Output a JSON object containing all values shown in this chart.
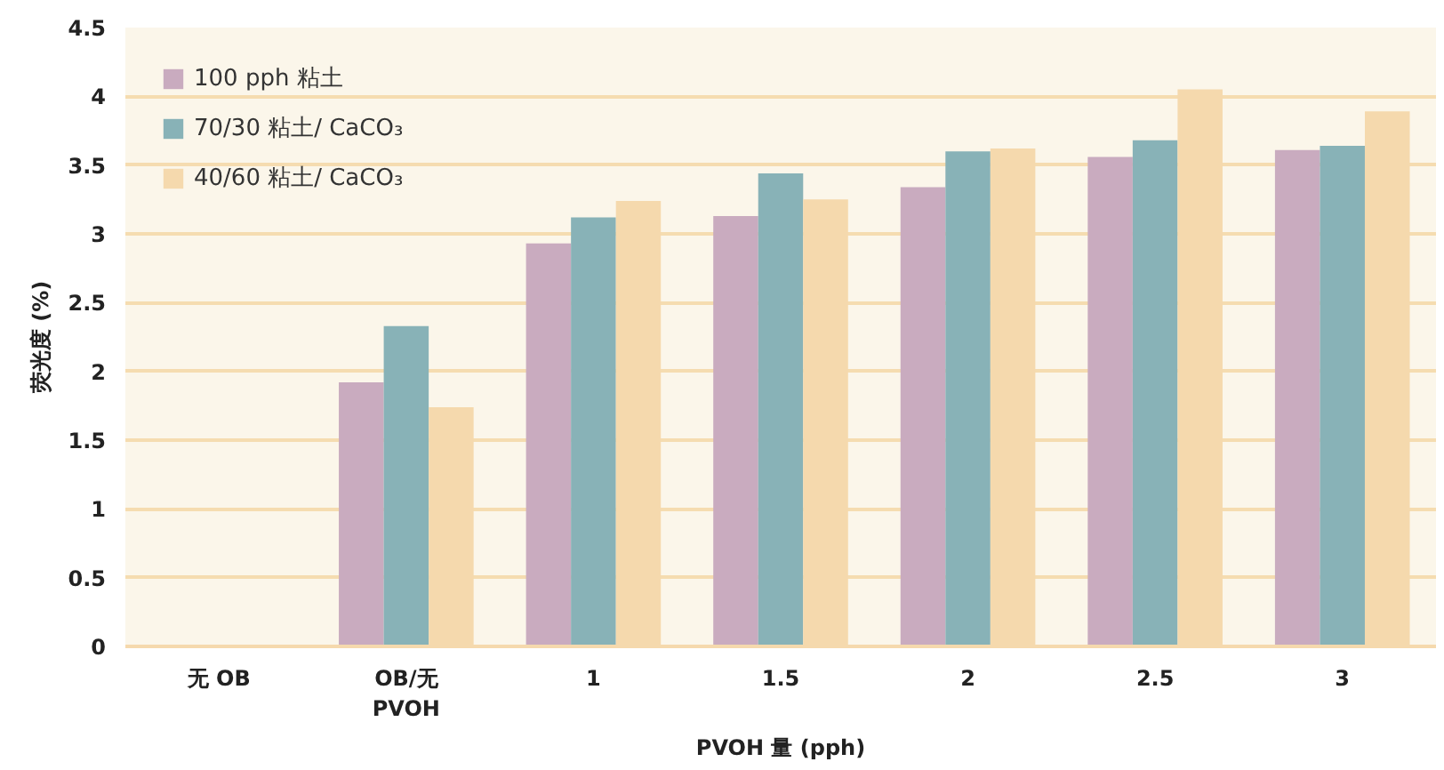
{
  "chart_data": {
    "type": "bar",
    "xlabel": "PVOH 量 (pph)",
    "ylabel": "荧光度 (%)",
    "categories": [
      "无 OB",
      "OB/无\nPVOH",
      "1",
      "1.5",
      "2",
      "2.5",
      "3"
    ],
    "series": [
      {
        "name": "100 pph 粘土",
        "color": "#c9abbf",
        "values": [
          null,
          1.92,
          2.93,
          3.13,
          3.34,
          3.56,
          3.61
        ]
      },
      {
        "name": "70/30 粘土/ CaCO₃",
        "color": "#88b2b7",
        "values": [
          null,
          2.33,
          3.12,
          3.44,
          3.6,
          3.68,
          3.64
        ]
      },
      {
        "name": "40/60 粘土/ CaCO₃",
        "color": "#f5d9ad",
        "values": [
          null,
          1.74,
          3.24,
          3.25,
          3.62,
          4.05,
          3.89
        ]
      }
    ],
    "ylim": [
      0,
      4.5
    ],
    "yticks": [
      0,
      0.5,
      1,
      1.5,
      2,
      2.5,
      3,
      3.5,
      4,
      4.5
    ],
    "grid": "y",
    "legend": "top left"
  }
}
